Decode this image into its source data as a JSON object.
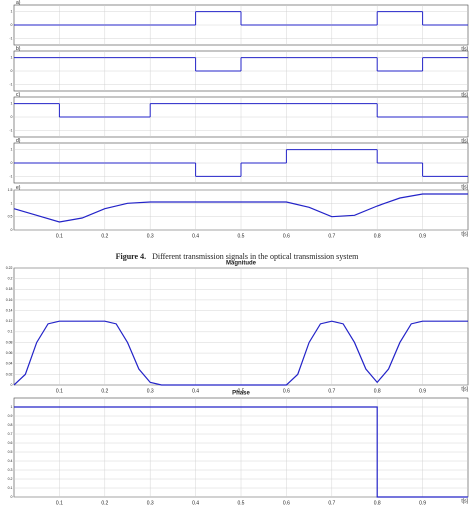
{
  "caption": {
    "label": "Figure 4.",
    "text": "Different transmission signals in the optical transmission system"
  },
  "chart_data": [
    {
      "type": "step",
      "label": "a)",
      "xlabel": "t[s]",
      "color": "#2323c8",
      "xlim": [
        0,
        1
      ],
      "xticks": [
        0.1,
        0.2,
        0.3,
        0.4,
        0.5,
        0.6,
        0.7,
        0.8,
        0.9
      ],
      "ylim": [
        -1.5,
        1.5
      ],
      "yticks": [
        -1,
        0,
        1
      ],
      "grid": true,
      "x": [
        0,
        0.1,
        0.2,
        0.3,
        0.4,
        0.5,
        0.6,
        0.7,
        0.8,
        0.9
      ],
      "values": [
        0,
        0,
        0,
        0,
        1,
        0,
        0,
        0,
        1,
        0
      ]
    },
    {
      "type": "step",
      "label": "b)",
      "xlabel": "t[s]",
      "color": "#2323c8",
      "xlim": [
        0,
        1
      ],
      "xticks": [
        0.1,
        0.2,
        0.3,
        0.4,
        0.5,
        0.6,
        0.7,
        0.8,
        0.9
      ],
      "ylim": [
        -1.5,
        1.5
      ],
      "yticks": [
        -1,
        0,
        1
      ],
      "grid": true,
      "x": [
        0,
        0.1,
        0.2,
        0.3,
        0.4,
        0.5,
        0.6,
        0.7,
        0.8,
        0.9
      ],
      "values": [
        1,
        1,
        1,
        1,
        0,
        1,
        1,
        1,
        0,
        1
      ]
    },
    {
      "type": "step",
      "label": "c)",
      "xlabel": "t[s]",
      "color": "#2323c8",
      "xlim": [
        0,
        1
      ],
      "xticks": [
        0.1,
        0.2,
        0.3,
        0.4,
        0.5,
        0.6,
        0.7,
        0.8,
        0.9
      ],
      "ylim": [
        -1.5,
        1.5
      ],
      "yticks": [
        -1,
        0,
        1
      ],
      "grid": true,
      "x": [
        0,
        0.1,
        0.2,
        0.3,
        0.4,
        0.5,
        0.6,
        0.7,
        0.8,
        0.9
      ],
      "values": [
        1,
        0,
        0,
        1,
        1,
        1,
        1,
        1,
        0,
        0
      ]
    },
    {
      "type": "step",
      "label": "d)",
      "xlabel": "t[s]",
      "color": "#2323c8",
      "xlim": [
        0,
        1
      ],
      "xticks": [
        0.1,
        0.2,
        0.3,
        0.4,
        0.5,
        0.6,
        0.7,
        0.8,
        0.9
      ],
      "ylim": [
        -1.5,
        1.5
      ],
      "yticks": [
        -1,
        0,
        1
      ],
      "grid": true,
      "x": [
        0,
        0.1,
        0.2,
        0.3,
        0.4,
        0.5,
        0.6,
        0.7,
        0.8,
        0.9
      ],
      "values": [
        0,
        0,
        0,
        0,
        -1,
        0,
        1,
        1,
        0,
        -1
      ]
    },
    {
      "type": "line",
      "label": "e)",
      "xlabel": "t[s]",
      "color": "#2323c8",
      "xlim": [
        0,
        1
      ],
      "xticks": [
        0.1,
        0.2,
        0.3,
        0.4,
        0.5,
        0.6,
        0.7,
        0.8,
        0.9
      ],
      "ylim": [
        0,
        1.5
      ],
      "yticks": [
        0,
        0.5,
        1,
        1.5
      ],
      "grid": true,
      "x": [
        0,
        0.05,
        0.1,
        0.15,
        0.2,
        0.25,
        0.3,
        0.35,
        0.4,
        0.45,
        0.5,
        0.55,
        0.6,
        0.65,
        0.7,
        0.75,
        0.8,
        0.85,
        0.9,
        0.95,
        1
      ],
      "values": [
        0.8,
        0.55,
        0.3,
        0.45,
        0.8,
        1.0,
        1.05,
        1.05,
        1.05,
        1.05,
        1.05,
        1.05,
        1.05,
        0.85,
        0.5,
        0.55,
        0.9,
        1.2,
        1.35,
        1.35,
        1.35
      ]
    },
    {
      "type": "line",
      "title": "Magnitude",
      "xlabel": "t[s]",
      "color": "#2323c8",
      "xlim": [
        0,
        1
      ],
      "xticks": [
        0.1,
        0.2,
        0.3,
        0.4,
        0.5,
        0.6,
        0.7,
        0.8,
        0.9
      ],
      "ylim": [
        0,
        0.22
      ],
      "yticks": [
        0,
        0.02,
        0.04,
        0.06,
        0.08,
        0.1,
        0.12,
        0.14,
        0.16,
        0.18,
        0.2,
        0.22
      ],
      "grid": true,
      "x": [
        0,
        0.025,
        0.05,
        0.075,
        0.1,
        0.125,
        0.15,
        0.175,
        0.2,
        0.225,
        0.25,
        0.275,
        0.3,
        0.325,
        0.35,
        0.4,
        0.45,
        0.5,
        0.55,
        0.6,
        0.625,
        0.65,
        0.675,
        0.7,
        0.725,
        0.75,
        0.775,
        0.8,
        0.825,
        0.85,
        0.875,
        0.9,
        0.925,
        0.95,
        1
      ],
      "values": [
        0,
        0.02,
        0.08,
        0.115,
        0.12,
        0.12,
        0.12,
        0.12,
        0.12,
        0.115,
        0.08,
        0.03,
        0.005,
        0,
        0,
        0,
        0,
        0,
        0,
        0,
        0.02,
        0.08,
        0.115,
        0.12,
        0.115,
        0.08,
        0.03,
        0.005,
        0.03,
        0.08,
        0.115,
        0.12,
        0.12,
        0.12,
        0.12
      ]
    },
    {
      "type": "line",
      "title": "Phase",
      "xlabel": "t[s]",
      "color": "#2323c8",
      "xlim": [
        0,
        1
      ],
      "xticks": [
        0.1,
        0.2,
        0.3,
        0.4,
        0.5,
        0.6,
        0.7,
        0.8,
        0.9
      ],
      "ylim": [
        0,
        1.1
      ],
      "yticks": [
        0,
        0.1,
        0.2,
        0.3,
        0.4,
        0.5,
        0.6,
        0.7,
        0.8,
        0.9,
        1
      ],
      "grid": true,
      "x": [
        0,
        0.8,
        0.8,
        1
      ],
      "values": [
        1,
        1,
        0,
        0
      ]
    }
  ]
}
